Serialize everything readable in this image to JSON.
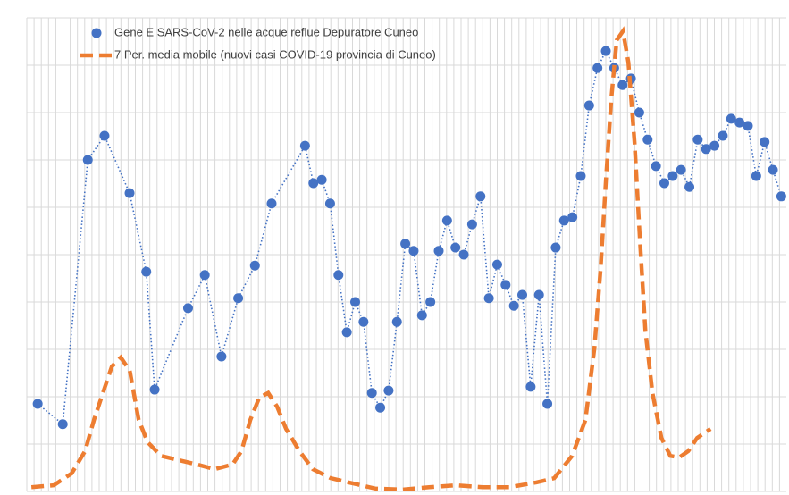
{
  "chart_data": {
    "type": "line",
    "grid": true,
    "legend": "upper left",
    "xlim": [
      -1.3,
      89.6
    ],
    "ylim": [
      0,
      10
    ],
    "yticks": [
      0,
      1,
      2,
      3,
      4,
      5,
      6,
      7,
      8,
      9,
      10
    ],
    "series": [
      {
        "name": "Gene E SARS-CoV-2 nelle acque reflue Depuratore Cuneo",
        "color": "#4472c4",
        "marker": true,
        "dash": "dotted",
        "x": [
          0,
          3,
          6,
          8,
          11,
          13,
          14,
          18,
          20,
          22,
          24,
          26,
          28,
          32,
          33,
          34,
          35,
          36,
          37,
          38,
          39,
          40,
          41,
          42,
          43,
          44,
          45,
          46,
          47,
          48,
          49,
          50,
          51,
          52,
          53,
          54,
          55,
          56,
          57,
          58,
          59,
          60,
          61,
          62,
          63,
          64,
          65,
          66,
          67,
          68,
          69,
          70,
          71,
          72,
          73,
          74,
          75,
          76,
          77,
          78,
          79,
          80,
          81,
          82,
          83,
          84,
          85,
          86,
          87,
          88,
          89
        ],
        "values": [
          1.85,
          1.42,
          7.0,
          7.51,
          6.3,
          4.64,
          2.15,
          3.87,
          4.57,
          2.85,
          4.08,
          4.77,
          6.08,
          7.3,
          6.51,
          6.58,
          6.08,
          4.57,
          3.36,
          4.0,
          3.58,
          2.08,
          1.77,
          2.13,
          3.58,
          5.23,
          5.08,
          3.72,
          4.0,
          5.08,
          5.72,
          5.15,
          5.0,
          5.64,
          6.23,
          4.08,
          4.79,
          4.36,
          3.92,
          4.15,
          2.21,
          4.15,
          1.85,
          5.15,
          5.72,
          5.79,
          6.66,
          8.15,
          8.94,
          9.3,
          8.94,
          8.58,
          8.72,
          8.0,
          7.43,
          6.87,
          6.51,
          6.66,
          6.79,
          6.43,
          7.43,
          7.23,
          7.3,
          7.51,
          7.87,
          7.79,
          7.72,
          6.66,
          7.38,
          6.79,
          6.23
        ]
      },
      {
        "name": "7 Per. media mobile (nuovi casi COVID-19 provincia di Cuneo)",
        "color": "#ed7d31",
        "marker": false,
        "dash": "dashed",
        "x": [
          -0.75,
          1.93,
          4.06,
          5.67,
          6.74,
          7.81,
          8.88,
          9.95,
          11.02,
          12.09,
          13.16,
          14.76,
          16.9,
          19.04,
          21.18,
          23.32,
          24.39,
          25.45,
          26.52,
          27.59,
          28.66,
          29.73,
          31.34,
          32.94,
          35.08,
          37.22,
          40.43,
          43.64,
          46.84,
          50.05,
          53.26,
          56.47,
          59.68,
          61.82,
          63.96,
          65.56,
          66.63,
          67.38,
          68.02,
          68.66,
          69.3,
          70.05,
          70.7,
          71.44,
          72.09,
          72.73,
          73.58,
          74.65,
          75.72,
          76.79,
          77.86,
          78.93,
          80.53
        ],
        "values": [
          0.09,
          0.13,
          0.38,
          0.85,
          1.51,
          2.08,
          2.64,
          2.83,
          2.55,
          1.51,
          1.04,
          0.75,
          0.66,
          0.57,
          0.47,
          0.57,
          0.85,
          1.51,
          1.98,
          2.08,
          1.79,
          1.32,
          0.85,
          0.47,
          0.28,
          0.19,
          0.06,
          0.04,
          0.09,
          0.13,
          0.09,
          0.09,
          0.19,
          0.28,
          0.75,
          1.51,
          3.02,
          4.72,
          6.6,
          8.3,
          9.53,
          9.72,
          9.06,
          7.36,
          5.28,
          3.4,
          2.08,
          1.13,
          0.75,
          0.72,
          0.85,
          1.13,
          1.32
        ]
      }
    ]
  }
}
